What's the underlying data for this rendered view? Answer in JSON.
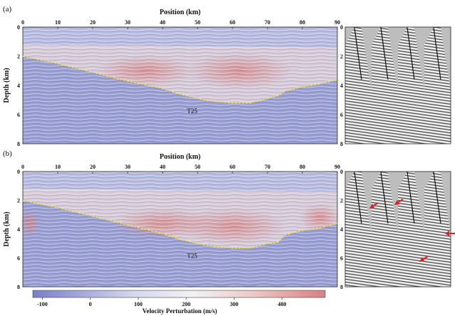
{
  "figure": {
    "panels": [
      {
        "label": "(a)",
        "xlabel": "Position (km)",
        "ylabel": "Depth (km)",
        "horizon_label": "T25",
        "x_ticks": [
          "0",
          "10",
          "20",
          "30",
          "40",
          "50",
          "60",
          "70",
          "80",
          "90"
        ],
        "y_ticks": [
          "0",
          "2",
          "4",
          "6",
          "8"
        ],
        "gather_y_ticks": [
          "0",
          "2",
          "4",
          "6",
          "8"
        ]
      },
      {
        "label": "(b)",
        "xlabel": "Position (km)",
        "ylabel": "Depth (km)",
        "horizon_label": "T25",
        "x_ticks": [
          "0",
          "10",
          "20",
          "30",
          "40",
          "50",
          "60",
          "70",
          "80",
          "90"
        ],
        "y_ticks": [
          "0",
          "2",
          "4",
          "6",
          "8"
        ],
        "gather_y_ticks": [
          "0",
          "2",
          "4",
          "6",
          "8"
        ]
      }
    ],
    "colorbar": {
      "label": "Velocity Perturbation (m/s)",
      "ticks": [
        "-100",
        "0",
        "100",
        "200",
        "300",
        "400"
      ],
      "colors": {
        "low": "#7a7fc8",
        "mid": "#f2f2f2",
        "high": "#d98080"
      }
    }
  },
  "chart_data": [
    {
      "type": "heatmap",
      "panel": "(a)",
      "xlim": [
        0,
        90
      ],
      "ylim": [
        0,
        8
      ],
      "horizon": {
        "name": "T25",
        "x": [
          0,
          10,
          20,
          30,
          40,
          45,
          50,
          55,
          60,
          65,
          70,
          73,
          75,
          78,
          80,
          85,
          90
        ],
        "y": [
          2.0,
          2.5,
          3.1,
          3.7,
          4.2,
          4.6,
          4.9,
          5.1,
          5.2,
          5.2,
          4.9,
          4.7,
          4.4,
          4.2,
          4.1,
          3.9,
          3.6
        ]
      }
    },
    {
      "type": "heatmap",
      "panel": "(b)",
      "xlim": [
        0,
        90
      ],
      "ylim": [
        0,
        8
      ],
      "horizon": {
        "name": "T25",
        "x": [
          0,
          10,
          20,
          30,
          40,
          45,
          50,
          55,
          60,
          65,
          70,
          73,
          75,
          78,
          80,
          85,
          90
        ],
        "y": [
          2.0,
          2.5,
          3.1,
          3.7,
          4.3,
          4.7,
          5.0,
          5.2,
          5.3,
          5.3,
          5.0,
          4.9,
          4.4,
          4.2,
          4.1,
          3.9,
          3.6
        ]
      }
    }
  ]
}
